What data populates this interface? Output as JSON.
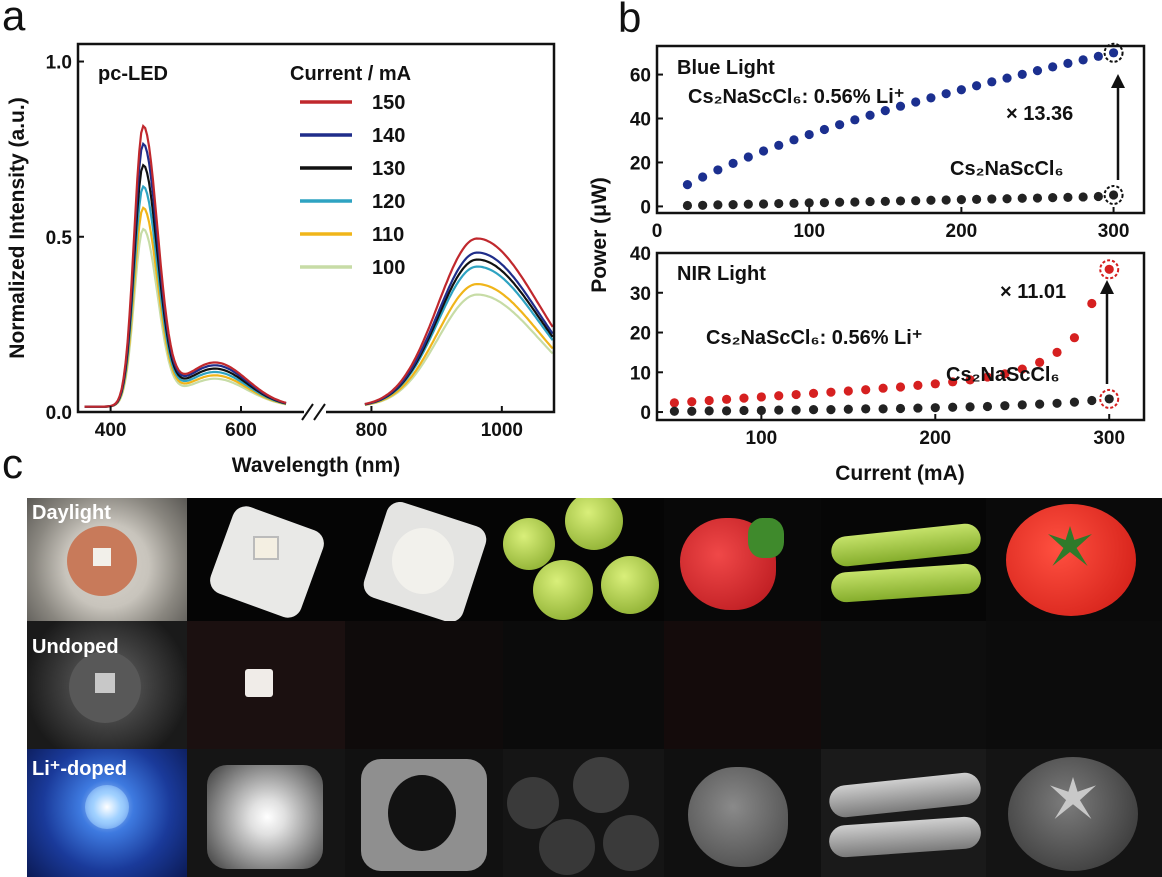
{
  "panel_labels": {
    "a": "a",
    "b": "b",
    "c": "c"
  },
  "panel_a": {
    "inset_label": "pc-LED",
    "legend_title": "Current / mA",
    "ylabel": "Normalized Intensity (a.u.)",
    "xlabel": "Wavelength (nm)",
    "x_ticks": [
      "400",
      "600",
      "800",
      "1000"
    ],
    "y_ticks": [
      "0.0",
      "0.5",
      "1.0"
    ]
  },
  "panel_b": {
    "top": {
      "title": "Blue Light",
      "label_doped": "Cs₂NaScCl₆: 0.56% Li⁺",
      "label_undoped": "Cs₂NaScCl₆",
      "factor": "× 13.36",
      "x_ticks": [
        "0",
        "100",
        "200",
        "300"
      ],
      "y_ticks": [
        "0",
        "20",
        "40",
        "60"
      ]
    },
    "bottom": {
      "title": "NIR Light",
      "label_doped": "Cs₂NaScCl₆: 0.56% Li⁺",
      "label_undoped": "Cs₂NaScCl₆",
      "factor": "× 11.01",
      "x_ticks": [
        "100",
        "200",
        "300"
      ],
      "y_ticks": [
        "0",
        "10",
        "20",
        "30",
        "40"
      ]
    },
    "ylabel": "Power (μW)",
    "xlabel": "Current (mA)"
  },
  "panel_c": {
    "row_labels": [
      "Daylight",
      "Undoped",
      "Li⁺-doped"
    ],
    "columns": [
      "LED fixture",
      "LED chip",
      "phosphor-capped LED",
      "grapes",
      "strawberry",
      "pea pods",
      "tomato"
    ]
  },
  "colors": {
    "150": "#c0282d",
    "140": "#1f2d8a",
    "130": "#111111",
    "120": "#2ea3c2",
    "110": "#f0b51a",
    "100": "#c7dca6",
    "blue_dots": "#1b2f8f",
    "red_dots": "#d62020",
    "black_dots": "#222222"
  },
  "chart_data": [
    {
      "type": "line",
      "title": "pc-LED",
      "xlabel": "Wavelength (nm)",
      "ylabel": "Normalized Intensity (a.u.)",
      "xlim": [
        350,
        1080
      ],
      "ylim": [
        0,
        1.05
      ],
      "axis_break": [
        670,
        790
      ],
      "legend_title": "Current / mA",
      "series": [
        {
          "name": "150",
          "blue_peak": 0.79,
          "nir_peak": 0.48
        },
        {
          "name": "140",
          "blue_peak": 0.74,
          "nir_peak": 0.44
        },
        {
          "name": "130",
          "blue_peak": 0.68,
          "nir_peak": 0.42
        },
        {
          "name": "120",
          "blue_peak": 0.62,
          "nir_peak": 0.4
        },
        {
          "name": "110",
          "blue_peak": 0.56,
          "nir_peak": 0.35
        },
        {
          "name": "100",
          "blue_peak": 0.5,
          "nir_peak": 0.32
        }
      ],
      "blue_peak_wavelength": 450,
      "nir_peak_wavelength": 962
    },
    {
      "type": "scatter",
      "title": "Blue Light",
      "xlabel": "Current (mA)",
      "ylabel": "Power (μW)",
      "xlim": [
        0,
        320
      ],
      "ylim": [
        -3,
        73
      ],
      "x": [
        20,
        30,
        40,
        50,
        60,
        70,
        80,
        90,
        100,
        110,
        120,
        130,
        140,
        150,
        160,
        170,
        180,
        190,
        200,
        210,
        220,
        230,
        240,
        250,
        260,
        270,
        280,
        290,
        300
      ],
      "series": [
        {
          "name": "Cs₂NaScCl₆: 0.56% Li⁺",
          "values": [
            9.9,
            13.4,
            16.6,
            19.6,
            22.5,
            25.2,
            27.8,
            30.3,
            32.7,
            35,
            37.2,
            39.4,
            41.5,
            43.6,
            45.6,
            47.5,
            49.4,
            51.3,
            53.1,
            54.9,
            56.7,
            58.4,
            60.1,
            61.8,
            63.5,
            65.1,
            66.7,
            68.3,
            69.9
          ]
        },
        {
          "name": "Cs₂NaScCl₆",
          "values": [
            0.4,
            0.5,
            0.7,
            0.8,
            1,
            1.1,
            1.3,
            1.4,
            1.6,
            1.7,
            1.9,
            2,
            2.2,
            2.3,
            2.5,
            2.6,
            2.8,
            2.9,
            3.1,
            3.2,
            3.4,
            3.5,
            3.7,
            3.8,
            4,
            4.1,
            4.3,
            4.5,
            5.2
          ]
        }
      ],
      "annotation": "× 13.36"
    },
    {
      "type": "scatter",
      "title": "NIR Light",
      "xlabel": "Current (mA)",
      "ylabel": "Power (μW)",
      "xlim": [
        40,
        320
      ],
      "ylim": [
        -2,
        40
      ],
      "x": [
        50,
        60,
        70,
        80,
        90,
        100,
        110,
        120,
        130,
        140,
        150,
        160,
        170,
        180,
        190,
        200,
        210,
        220,
        230,
        240,
        250,
        260,
        270,
        280,
        290,
        300
      ],
      "series": [
        {
          "name": "Cs₂NaScCl₆: 0.56% Li⁺",
          "values": [
            2.3,
            2.6,
            2.9,
            3.2,
            3.5,
            3.8,
            4.1,
            4.4,
            4.7,
            5,
            5.3,
            5.6,
            6,
            6.3,
            6.7,
            7.1,
            7.6,
            8.1,
            8.8,
            9.6,
            10.8,
            12.5,
            15,
            18.7,
            27.3,
            35.9
          ]
        },
        {
          "name": "Cs₂NaScCl₆",
          "values": [
            0.2,
            0.2,
            0.3,
            0.3,
            0.4,
            0.4,
            0.5,
            0.5,
            0.6,
            0.6,
            0.7,
            0.8,
            0.8,
            0.9,
            1,
            1.1,
            1.2,
            1.3,
            1.4,
            1.6,
            1.8,
            2,
            2.2,
            2.5,
            2.9,
            3.3
          ]
        }
      ],
      "annotation": "× 11.01"
    }
  ]
}
